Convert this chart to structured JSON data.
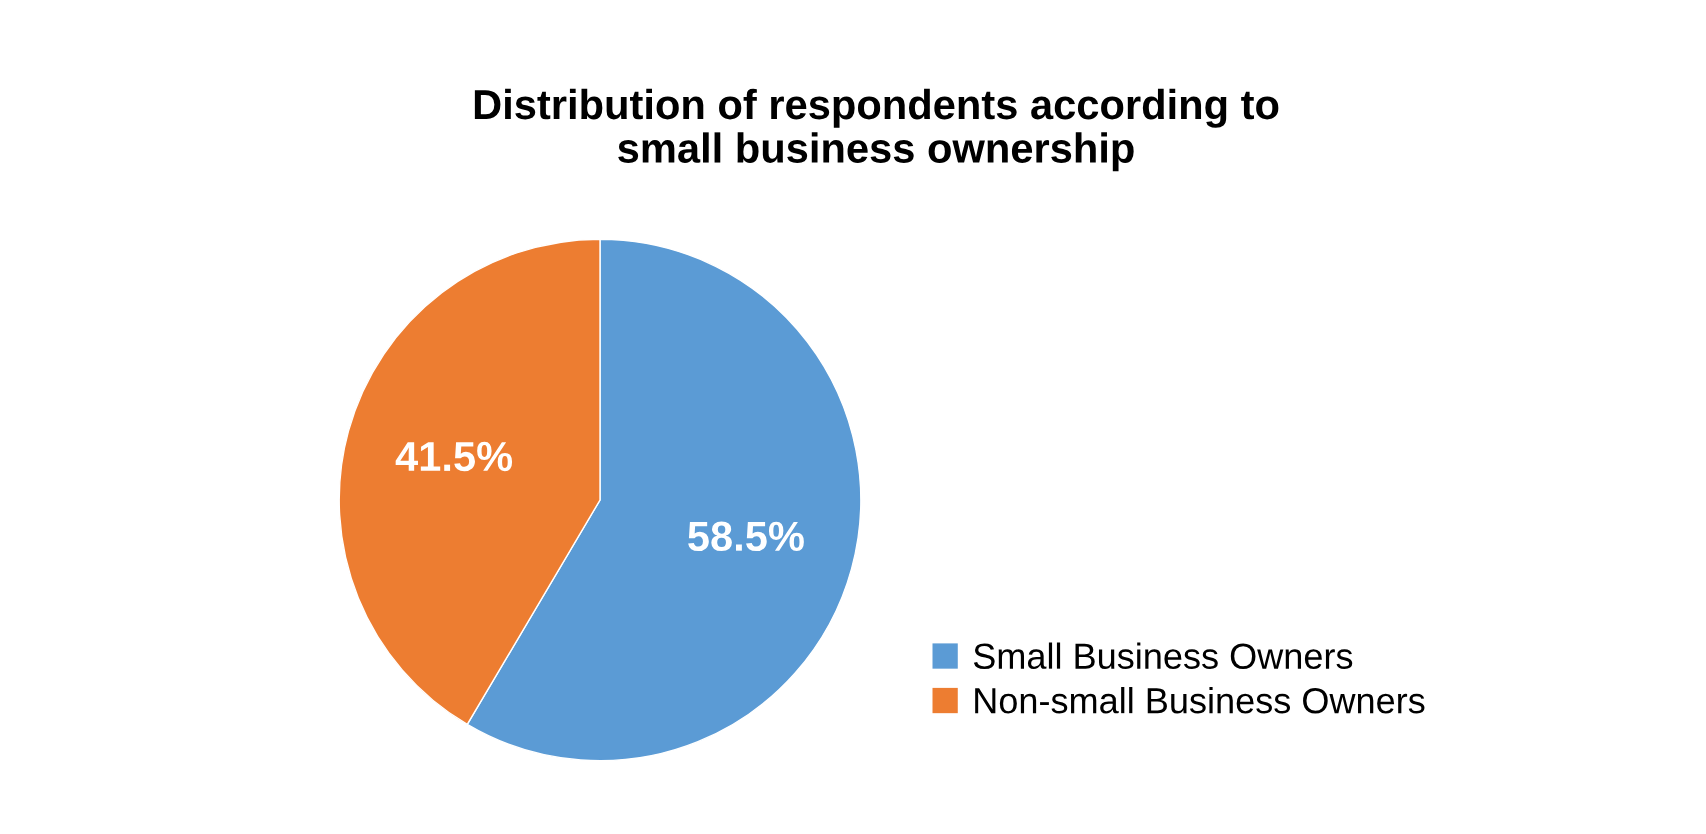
{
  "chart_data": {
    "type": "pie",
    "title": "Distribution of respondents according to\nsmall business ownership",
    "categories": [
      "Small Business Owners",
      "Non-small Business Owners"
    ],
    "values": [
      58.5,
      41.5
    ],
    "colors": [
      "#5b9bd5",
      "#ed7d31"
    ],
    "value_labels": [
      "58.5%",
      "41.5%"
    ],
    "legend": "right"
  }
}
